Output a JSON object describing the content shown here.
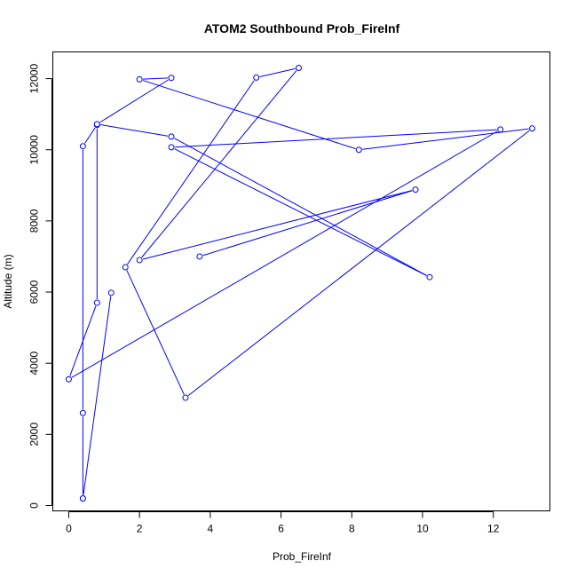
{
  "chart_data": {
    "type": "line",
    "title": "ATOM2 Southbound Prob_FireInf",
    "xlabel": "Prob_FireInf",
    "ylabel": "Altitude (m)",
    "xlim": [
      -0.45,
      13.6
    ],
    "ylim": [
      -150,
      12750
    ],
    "xticks": [
      0,
      2,
      4,
      6,
      8,
      10,
      12
    ],
    "yticks": [
      0,
      2000,
      4000,
      6000,
      8000,
      10000,
      12000
    ],
    "grid": false,
    "color": "#0000ff",
    "markers": "open-circle",
    "series": [
      {
        "points": [
          {
            "x": 0.4,
            "y": 200
          },
          {
            "x": 0.4,
            "y": 2600
          },
          {
            "x": 0.4,
            "y": 10100
          },
          {
            "x": 0.8,
            "y": 10700
          },
          {
            "x": 0.8,
            "y": 5700
          },
          {
            "x": 0.0,
            "y": 3550
          },
          {
            "x": 12.2,
            "y": 10570
          },
          {
            "x": 2.9,
            "y": 10070
          },
          {
            "x": 10.2,
            "y": 6420
          },
          {
            "x": 2.9,
            "y": 10370
          },
          {
            "x": 0.8,
            "y": 10720
          },
          {
            "x": 2.9,
            "y": 12020
          },
          {
            "x": 2.0,
            "y": 11980
          },
          {
            "x": 8.2,
            "y": 10000
          },
          {
            "x": 13.1,
            "y": 10600
          },
          {
            "x": 3.3,
            "y": 3030
          },
          {
            "x": 1.6,
            "y": 6700
          },
          {
            "x": 5.3,
            "y": 12030
          },
          {
            "x": 6.5,
            "y": 12300
          },
          {
            "x": 2.0,
            "y": 6900
          },
          {
            "x": 9.8,
            "y": 8880
          },
          {
            "x": 3.7,
            "y": 7000
          }
        ]
      },
      {
        "points": [
          {
            "x": 1.2,
            "y": 5980
          },
          {
            "x": 0.4,
            "y": 200
          }
        ]
      }
    ]
  }
}
